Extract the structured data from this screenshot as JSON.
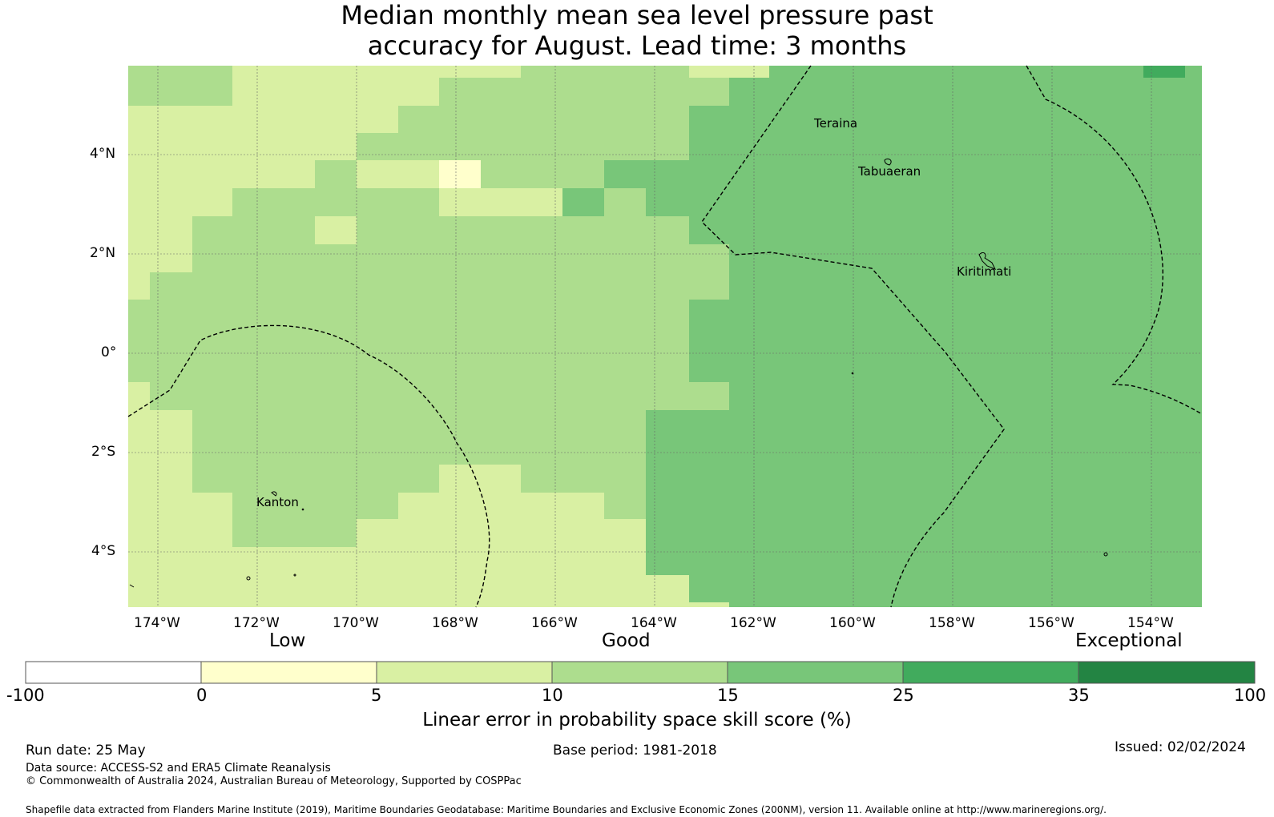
{
  "title": {
    "line1": "Median monthly mean sea level pressure past",
    "line2": "accuracy for August. Lead time: 3 months"
  },
  "map": {
    "lat_labels": [
      "4°N",
      "2°N",
      "0°",
      "2°S",
      "4°S"
    ],
    "lon_labels": [
      "174°W",
      "172°W",
      "170°W",
      "168°W",
      "166°W",
      "164°W",
      "162°W",
      "160°W",
      "158°W",
      "156°W",
      "154°W"
    ],
    "places": [
      "Teraina",
      "Tabuaeran",
      "Kiritimati",
      "Kanton"
    ],
    "colors": {
      "c0_5": "#ffffcc",
      "c5_10": "#d9f0a3",
      "c10_15": "#addd8e",
      "c15_25": "#78c679",
      "c25_35": "#41ab5d",
      "c35_100": "#238443"
    }
  },
  "legend": {
    "categories": [
      "Low",
      "Good",
      "Exceptional"
    ],
    "ticks": [
      "-100",
      "0",
      "5",
      "10",
      "15",
      "25",
      "35",
      "100"
    ],
    "colors": [
      "#ffffff",
      "#ffffcc",
      "#d9f0a3",
      "#addd8e",
      "#78c679",
      "#41ab5d",
      "#238443"
    ],
    "label": "Linear error in probability space skill score (%)"
  },
  "footer": {
    "run_date": "Run date: 25 May",
    "base_period": "Base period: 1981-2018",
    "issued": "Issued: 02/02/2024",
    "data_source": "Data source: ACCESS-S2 and ERA5 Climate Reanalysis",
    "copyright": "© Commonwealth of Australia 2024, Australian Bureau of Meteorology, Supported by COSPPac",
    "shapefile": "Shapefile data extracted from Flanders Marine Institute (2019), Maritime Boundaries Geodatabase: Maritime Boundaries and Exclusive Economic Zones (200NM), version 11. Available online at http://www.marineregions.org/."
  }
}
